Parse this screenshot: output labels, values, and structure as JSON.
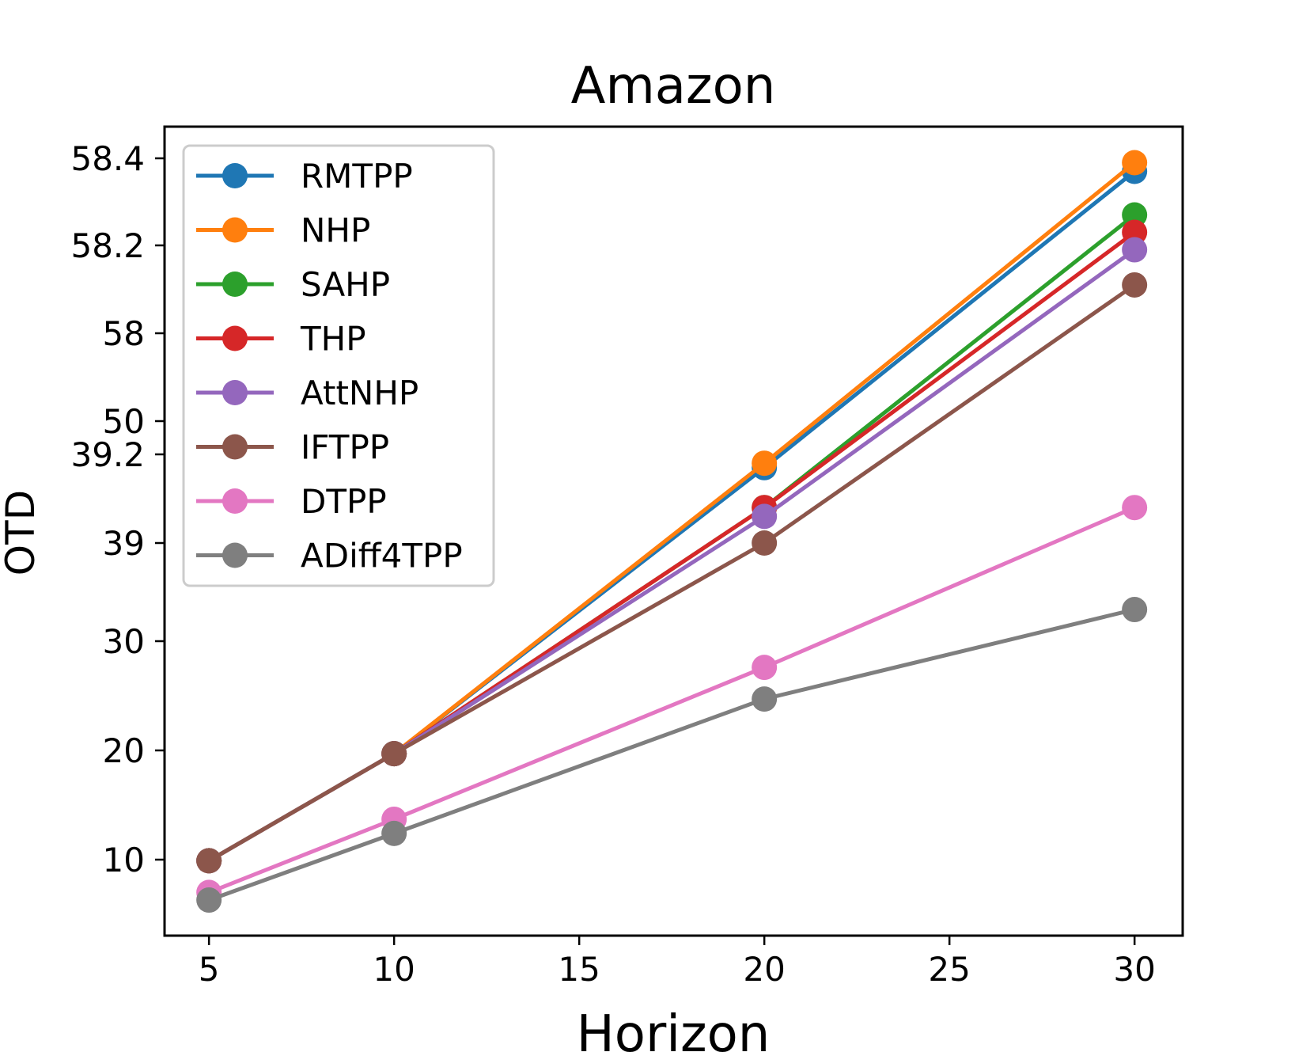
{
  "chart_data": {
    "type": "line",
    "title": "Amazon",
    "xlabel": "Horizon",
    "ylabel": "OTD",
    "x": [
      5,
      10,
      20,
      30
    ],
    "xlim": [
      3.8,
      31.3
    ],
    "x_ticks": [
      5,
      10,
      15,
      20,
      25,
      30
    ],
    "ylim": [
      3.1,
      58.49
    ],
    "y_axis_note": "broken y-axis: tick labels are non-uniform; values are placed by piecewise-linear interpolation between tick labels",
    "y_ticks": [
      {
        "value": 10,
        "label": "10"
      },
      {
        "value": 20,
        "label": "20"
      },
      {
        "value": 30,
        "label": "30"
      },
      {
        "value": 39,
        "label": "39"
      },
      {
        "value": 39.2,
        "label": "39.2"
      },
      {
        "value": 50,
        "label": "50"
      },
      {
        "value": 58,
        "label": "58"
      },
      {
        "value": 58.2,
        "label": "58.2"
      },
      {
        "value": 58.4,
        "label": "58.4"
      }
    ],
    "legend_position": "upper-left",
    "grid": false,
    "series": [
      {
        "name": "RMTPP",
        "color": "#1f77b4",
        "values": [
          9.9,
          19.7,
          39.17,
          58.37
        ]
      },
      {
        "name": "NHP",
        "color": "#ff7f0e",
        "values": [
          9.9,
          19.7,
          39.18,
          58.39
        ]
      },
      {
        "name": "SAHP",
        "color": "#2ca02c",
        "values": [
          9.9,
          19.7,
          39.08,
          58.27
        ]
      },
      {
        "name": "THP",
        "color": "#d62728",
        "values": [
          9.9,
          19.7,
          39.08,
          58.23
        ]
      },
      {
        "name": "AttNHP",
        "color": "#9467bd",
        "values": [
          9.9,
          19.7,
          39.06,
          58.19
        ]
      },
      {
        "name": "IFTPP",
        "color": "#8c564b",
        "values": [
          9.9,
          19.7,
          39.0,
          58.11
        ]
      },
      {
        "name": "DTPP",
        "color": "#e377c2",
        "values": [
          7.0,
          13.7,
          27.6,
          39.08
        ]
      },
      {
        "name": "ADiff4TPP",
        "color": "#7f7f7f",
        "values": [
          6.3,
          12.4,
          24.7,
          32.9
        ]
      }
    ]
  }
}
